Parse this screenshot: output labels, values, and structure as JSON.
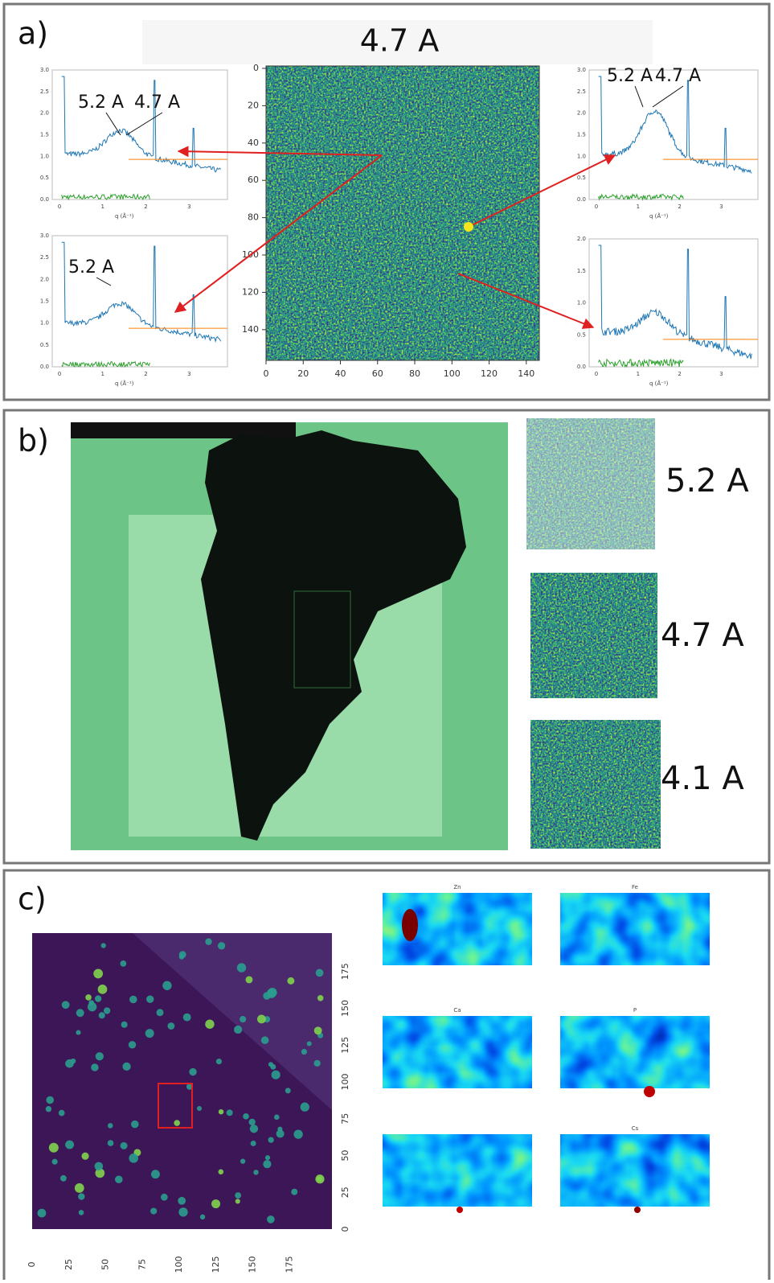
{
  "panels": [
    {
      "label": "a)",
      "title": "4.7 A",
      "map": {
        "xticks": [
          0,
          20,
          40,
          60,
          80,
          100,
          120,
          140
        ],
        "yticks": [
          0,
          20,
          40,
          60,
          80,
          100,
          120,
          140
        ]
      },
      "spectra": [
        {
          "yticks": [
            "0.0",
            "0.5",
            "1.0",
            "1.5",
            "2.0",
            "2.5",
            "3.0"
          ],
          "xticks": [
            0,
            1,
            2,
            3
          ],
          "xlabel": "q (Å⁻¹)",
          "annotations": [
            "5.2 A",
            "4.7 A"
          ]
        },
        {
          "yticks": [
            "0.0",
            "0.5",
            "1.0",
            "1.5",
            "2.0",
            "2.5",
            "3.0"
          ],
          "xticks": [
            0,
            1,
            2,
            3
          ],
          "xlabel": "q (Å⁻¹)",
          "annotations": [
            "5.2 A"
          ]
        },
        {
          "yticks": [
            "0.0",
            "0.5",
            "1.0",
            "1.5",
            "2.0",
            "2.5",
            "3.0"
          ],
          "xticks": [
            0,
            1,
            2,
            3
          ],
          "xlabel": "q (Å⁻¹)",
          "annotations": [
            "5.2 A",
            "4.7 A"
          ]
        },
        {
          "yticks": [
            "0.0",
            "0.5",
            "1.0",
            "1.5",
            "2.0"
          ],
          "xticks": [
            0,
            1,
            2,
            3
          ],
          "xlabel": "q (Å⁻¹)",
          "annotations": []
        }
      ]
    },
    {
      "label": "b)",
      "maps": [
        {
          "label": "5.2 A"
        },
        {
          "label": "4.7 A"
        },
        {
          "label": "4.1 A"
        }
      ]
    },
    {
      "label": "c)",
      "map": {
        "xticks": [
          0,
          25,
          50,
          75,
          100,
          125,
          150,
          175
        ],
        "yticks": [
          0,
          25,
          50,
          75,
          100,
          125,
          150,
          175
        ]
      },
      "elements": [
        "Zn",
        "Fe",
        "Ca",
        "P",
        "Cs"
      ]
    }
  ]
}
